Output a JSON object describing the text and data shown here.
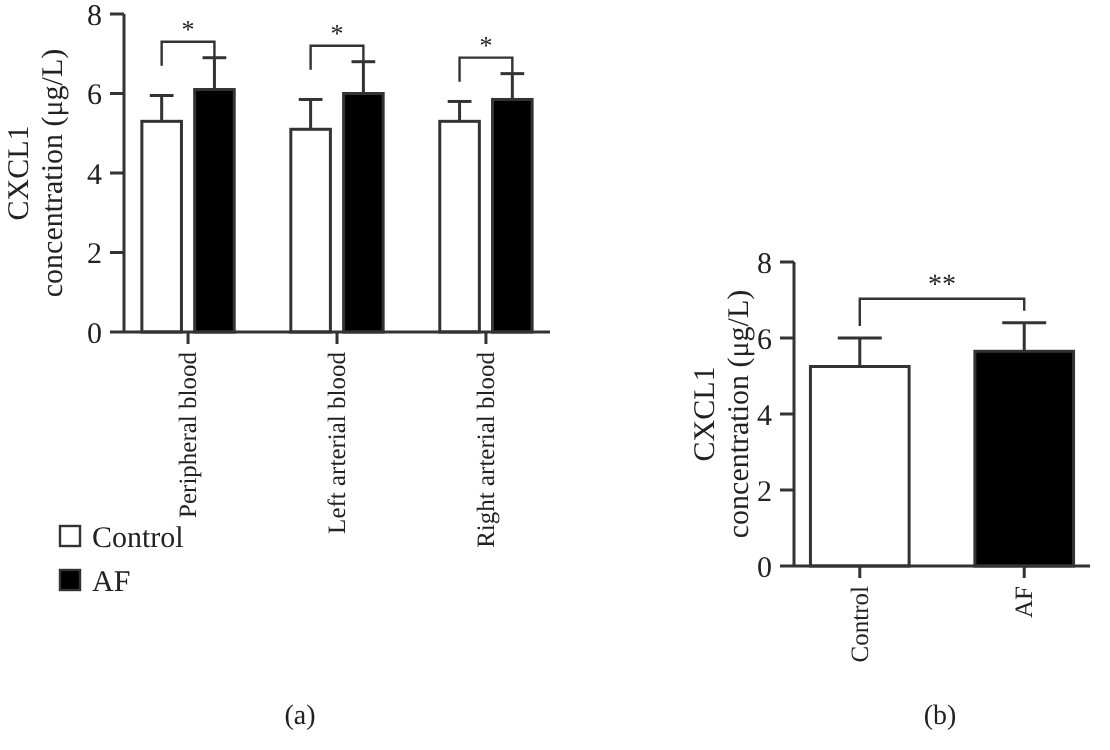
{
  "chart_data": [
    {
      "type": "bar",
      "ylabel": "CXCL1 concentration (μg/L)",
      "categories": [
        "Peripheral blood",
        "Left arterial blood",
        "Right arterial blood"
      ],
      "series": [
        {
          "name": "Control",
          "color": "#ffffff",
          "values": [
            5.3,
            5.1,
            5.3
          ],
          "errors": [
            [
              5.3,
              5.95
            ],
            [
              5.1,
              5.85
            ],
            [
              5.3,
              5.8
            ]
          ]
        },
        {
          "name": "AF",
          "color": "#000000",
          "values": [
            6.1,
            6.0,
            5.85
          ],
          "errors": [
            [
              6.1,
              6.9
            ],
            [
              6.0,
              6.8
            ],
            [
              5.85,
              6.5
            ]
          ]
        }
      ],
      "ylim": [
        0,
        8
      ],
      "yticks": [
        0,
        2,
        4,
        6,
        8
      ],
      "legend": "bottom",
      "annotations": [
        "*",
        "*",
        "*",
        "(a)"
      ]
    },
    {
      "type": "bar",
      "ylabel": "CXCL1 concentration (μg/L)",
      "categories": [
        "Control",
        "AF"
      ],
      "series": [
        {
          "colors": [
            "#ffffff",
            "#000000"
          ],
          "values": [
            5.25,
            5.65
          ],
          "errors": [
            [
              5.25,
              6.0
            ],
            [
              5.65,
              6.4
            ]
          ]
        }
      ],
      "ylim": [
        0,
        8
      ],
      "yticks": [
        0,
        2,
        4,
        6,
        8
      ],
      "annotations": [
        "**",
        "(b)"
      ]
    }
  ]
}
